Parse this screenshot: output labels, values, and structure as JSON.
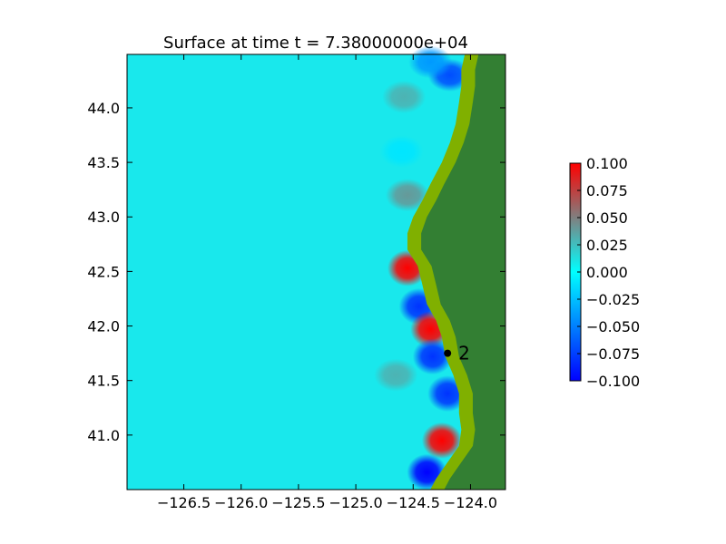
{
  "chart_data": {
    "type": "heatmap",
    "title": "Surface at time t = 7.38000000e+04",
    "xlabel": "",
    "ylabel": "",
    "xlim": [
      -126.995,
      -123.695
    ],
    "ylim": [
      40.5,
      44.49
    ],
    "x_ticks": [
      -126.5,
      -126.0,
      -125.5,
      -125.0,
      -124.5,
      -124.0
    ],
    "x_tick_labels": [
      "−126.5",
      "−126.0",
      "−125.5",
      "−125.0",
      "−124.5",
      "−124.0"
    ],
    "y_ticks": [
      41.0,
      41.5,
      42.0,
      42.5,
      43.0,
      43.5,
      44.0
    ],
    "y_tick_labels": [
      "41.0",
      "41.5",
      "42.0",
      "42.5",
      "43.0",
      "43.5",
      "44.0"
    ],
    "grid": false,
    "colorbar": {
      "range": [
        -0.1,
        0.1
      ],
      "ticks": [
        0.1,
        0.075,
        0.05,
        0.025,
        0.0,
        -0.025,
        -0.05,
        -0.075,
        -0.1
      ],
      "tick_labels": [
        "0.100",
        "0.075",
        "0.050",
        "0.025",
        "0.000",
        "−0.025",
        "−0.050",
        "−0.075",
        "−0.100"
      ],
      "colors": [
        "#0000ff",
        "#00ffff",
        "#ff0000"
      ]
    },
    "colors": {
      "ocean_background": "#19e8ec",
      "land": "#337f33",
      "coastal_lowland": "#80b000"
    },
    "gauge": {
      "label": "2",
      "x": -124.2,
      "y": 41.75
    },
    "features": [
      {
        "kind": "positive",
        "x": -124.55,
        "y": 42.53,
        "value": 0.1
      },
      {
        "kind": "negative",
        "x": -124.45,
        "y": 42.18,
        "value": -0.08
      },
      {
        "kind": "positive",
        "x": -124.35,
        "y": 41.97,
        "value": 0.1
      },
      {
        "kind": "negative",
        "x": -124.33,
        "y": 41.72,
        "value": -0.08
      },
      {
        "kind": "negative",
        "x": -124.2,
        "y": 41.38,
        "value": -0.08
      },
      {
        "kind": "positive",
        "x": -124.25,
        "y": 40.95,
        "value": 0.1
      },
      {
        "kind": "negative",
        "x": -124.38,
        "y": 40.66,
        "value": -0.1
      },
      {
        "kind": "negative",
        "x": -124.18,
        "y": 44.3,
        "value": -0.07
      },
      {
        "kind": "negative",
        "x": -124.35,
        "y": 44.42,
        "value": -0.04
      },
      {
        "kind": "positive",
        "x": -124.58,
        "y": 44.1,
        "value": 0.03
      },
      {
        "kind": "positive",
        "x": -124.55,
        "y": 43.2,
        "value": 0.04
      },
      {
        "kind": "positive",
        "x": -124.65,
        "y": 41.55,
        "value": 0.03
      },
      {
        "kind": "negative",
        "x": -124.6,
        "y": 43.6,
        "value": -0.01
      }
    ]
  }
}
